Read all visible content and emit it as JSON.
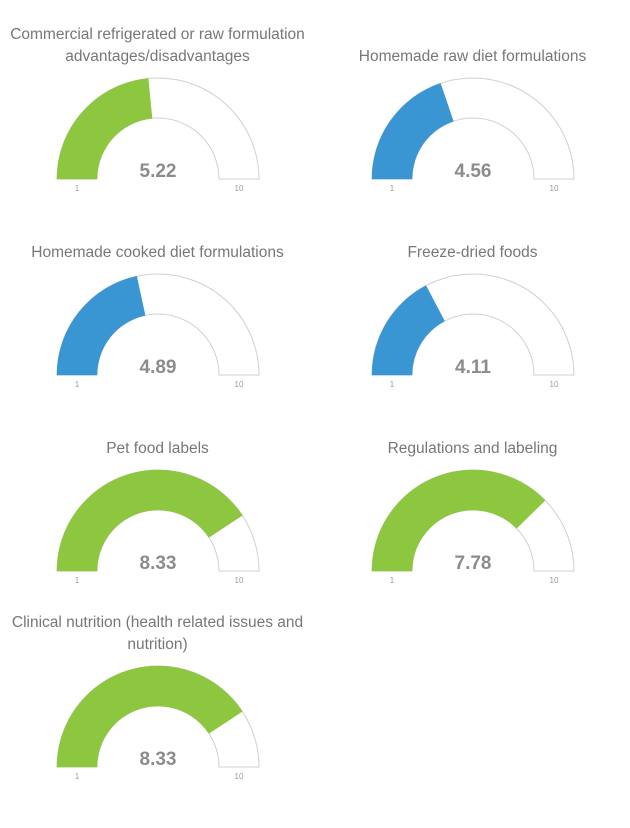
{
  "chart_data": {
    "type": "gauge",
    "min_label": "1",
    "max_label": "10",
    "scale": [
      1,
      10
    ],
    "gauges": [
      {
        "title": "Commercial refrigerated or raw formulation advantages/disadvantages",
        "value": 5.22,
        "value_label": "5.22",
        "color": "#8dc63f"
      },
      {
        "title": "Homemade raw diet formulations",
        "value": 4.56,
        "value_label": "4.56",
        "color": "#3a95d3"
      },
      {
        "title": "Homemade cooked diet formulations",
        "value": 4.89,
        "value_label": "4.89",
        "color": "#3a95d3"
      },
      {
        "title": "Freeze-dried foods",
        "value": 4.11,
        "value_label": "4.11",
        "color": "#3a95d3"
      },
      {
        "title": "Pet food labels",
        "value": 8.33,
        "value_label": "8.33",
        "color": "#8dc63f"
      },
      {
        "title": "Regulations and labeling",
        "value": 7.78,
        "value_label": "7.78",
        "color": "#8dc63f"
      },
      {
        "title": "Clinical nutrition (health related issues and nutrition)",
        "value": 8.33,
        "value_label": "8.33",
        "color": "#8dc63f"
      }
    ]
  }
}
